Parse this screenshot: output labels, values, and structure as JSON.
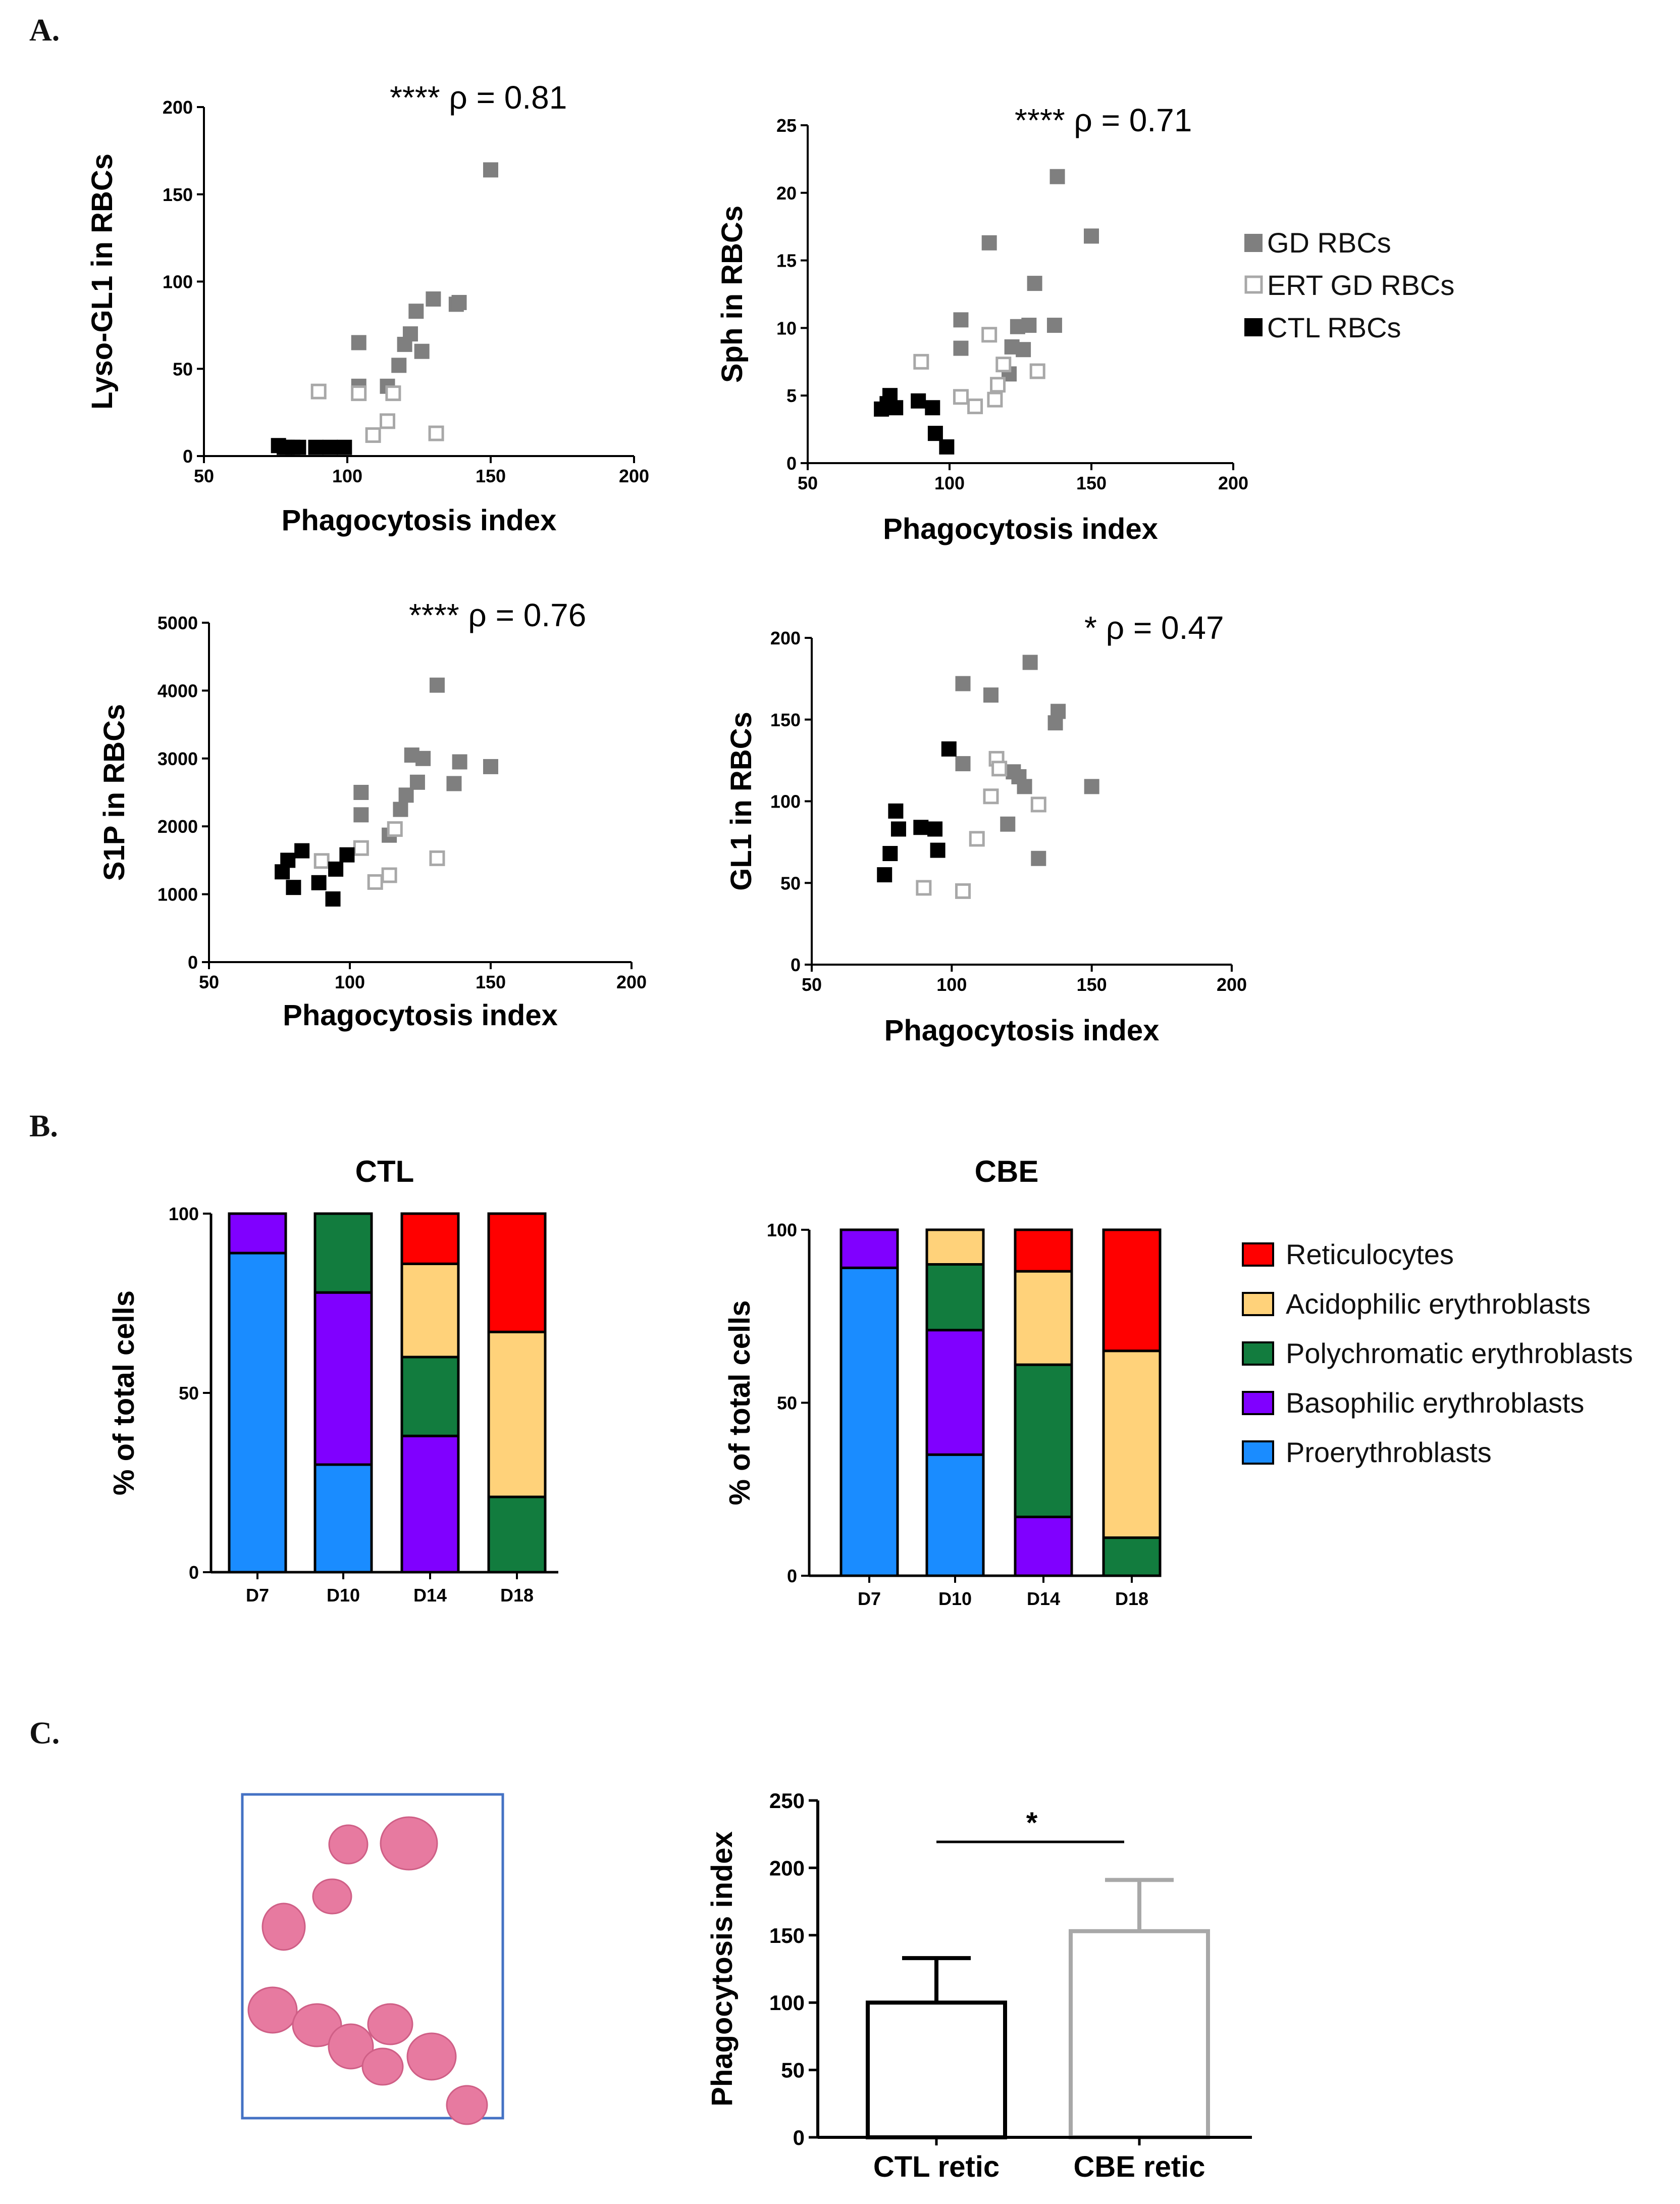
{
  "figure": {
    "panel_labels": [
      "A.",
      "B.",
      "C."
    ],
    "scatter_legend": [
      {
        "label": "GD RBCs",
        "style": "filled",
        "color": "#7f7f7f"
      },
      {
        "label": "ERT GD RBCs",
        "style": "open",
        "color": "#a8a8a8"
      },
      {
        "label": "CTL RBCs",
        "style": "filled",
        "color": "#000000"
      }
    ],
    "stack_legend": [
      {
        "label": "Reticulocytes",
        "color": "#ff0000"
      },
      {
        "label": "Acidophilic erythroblasts",
        "color": "#ffd27a"
      },
      {
        "label": "Polychromatic erythroblasts",
        "color": "#127c3e"
      },
      {
        "label": "Basophilic erythroblasts",
        "color": "#8000ff"
      },
      {
        "label": "Proerythroblasts",
        "color": "#1a8cff"
      }
    ],
    "micrograph": {
      "description_icon": "microscopy-image",
      "frame_color": "#4472c4"
    }
  },
  "chart_data": [
    {
      "id": "lyso",
      "type": "scatter",
      "title": "",
      "annotation": "**** ρ = 0.81",
      "xlabel": "Phagocytosis index",
      "ylabel": "Lyso-GL1 in RBCs",
      "xlim": [
        50,
        200
      ],
      "ylim": [
        0,
        200
      ],
      "xticks": [
        50,
        100,
        150,
        200
      ],
      "yticks": [
        0,
        50,
        100,
        150,
        200
      ],
      "series": [
        {
          "name": "GD RBCs",
          "points": [
            [
              150,
              164
            ],
            [
              104,
              65
            ],
            [
              104,
              40
            ],
            [
              114,
              40
            ],
            [
              118,
              52
            ],
            [
              120,
              64
            ],
            [
              122,
              70
            ],
            [
              124,
              83
            ],
            [
              126,
              60
            ],
            [
              130,
              90
            ],
            [
              138,
              87
            ],
            [
              139,
              88
            ]
          ]
        },
        {
          "name": "ERT GD RBCs",
          "points": [
            [
              90,
              37
            ],
            [
              104,
              36
            ],
            [
              109,
              12
            ],
            [
              114,
              20
            ],
            [
              116,
              36
            ],
            [
              131,
              13
            ]
          ]
        },
        {
          "name": "CTL RBCs",
          "points": [
            [
              76,
              6
            ],
            [
              78,
              5
            ],
            [
              79,
              5
            ],
            [
              81,
              5
            ],
            [
              83,
              5
            ],
            [
              89,
              5
            ],
            [
              94,
              5
            ],
            [
              99,
              5
            ]
          ]
        }
      ]
    },
    {
      "id": "sph",
      "type": "scatter",
      "annotation": "**** ρ = 0.71",
      "xlabel": "Phagocytosis index",
      "ylabel": "Sph in RBCs",
      "xlim": [
        50,
        200
      ],
      "ylim": [
        0,
        25
      ],
      "xticks": [
        50,
        100,
        150,
        200
      ],
      "yticks": [
        0,
        5,
        10,
        15,
        20,
        25
      ],
      "series": [
        {
          "name": "GD RBCs",
          "points": [
            [
              138,
              21.2
            ],
            [
              150,
              16.8
            ],
            [
              114,
              16.3
            ],
            [
              130,
              13.3
            ],
            [
              104,
              10.6
            ],
            [
              104,
              8.5
            ],
            [
              121,
              6.6
            ],
            [
              122,
              8.6
            ],
            [
              124,
              10.1
            ],
            [
              126,
              8.4
            ],
            [
              128,
              10.2
            ],
            [
              137,
              10.2
            ]
          ]
        },
        {
          "name": "ERT GD RBCs",
          "points": [
            [
              90,
              7.5
            ],
            [
              104,
              4.9
            ],
            [
              109,
              4.2
            ],
            [
              114,
              9.5
            ],
            [
              116,
              4.7
            ],
            [
              117,
              5.8
            ],
            [
              119,
              7.3
            ],
            [
              131,
              6.8
            ]
          ]
        },
        {
          "name": "CTL RBCs",
          "points": [
            [
              76,
              4.0
            ],
            [
              78,
              4.4
            ],
            [
              79,
              5.0
            ],
            [
              81,
              4.1
            ],
            [
              89,
              4.6
            ],
            [
              94,
              4.1
            ],
            [
              95,
              2.2
            ],
            [
              99,
              1.2
            ]
          ]
        }
      ]
    },
    {
      "id": "s1p",
      "type": "scatter",
      "annotation": "**** ρ = 0.76",
      "xlabel": "Phagocytosis index",
      "ylabel": "S1P in RBCs",
      "xlim": [
        50,
        200
      ],
      "ylim": [
        0,
        5000
      ],
      "xticks": [
        50,
        100,
        150,
        200
      ],
      "yticks": [
        0,
        1000,
        2000,
        3000,
        4000,
        5000
      ],
      "series": [
        {
          "name": "GD RBCs",
          "points": [
            [
              131,
              4080
            ],
            [
              104,
              2500
            ],
            [
              104,
              2170
            ],
            [
              114,
              1870
            ],
            [
              118,
              2250
            ],
            [
              120,
              2460
            ],
            [
              122,
              3050
            ],
            [
              124,
              2650
            ],
            [
              126,
              3000
            ],
            [
              137,
              2630
            ],
            [
              139,
              2950
            ],
            [
              150,
              2880
            ]
          ]
        },
        {
          "name": "ERT GD RBCs",
          "points": [
            [
              90,
              1490
            ],
            [
              104,
              1680
            ],
            [
              109,
              1180
            ],
            [
              114,
              1280
            ],
            [
              116,
              1960
            ],
            [
              131,
              1530
            ]
          ]
        },
        {
          "name": "CTL RBCs",
          "points": [
            [
              76,
              1330
            ],
            [
              78,
              1500
            ],
            [
              80,
              1100
            ],
            [
              83,
              1640
            ],
            [
              89,
              1170
            ],
            [
              94,
              930
            ],
            [
              95,
              1370
            ],
            [
              99,
              1580
            ]
          ]
        }
      ]
    },
    {
      "id": "gl1",
      "type": "scatter",
      "annotation": "* ρ = 0.47",
      "xlabel": "Phagocytosis index",
      "ylabel": "GL1 in RBCs",
      "xlim": [
        50,
        200
      ],
      "ylim": [
        0,
        200
      ],
      "xticks": [
        50,
        100,
        150,
        200
      ],
      "yticks": [
        0,
        50,
        100,
        150,
        200
      ],
      "series": [
        {
          "name": "GD RBCs",
          "points": [
            [
              104,
              172
            ],
            [
              104,
              123
            ],
            [
              114,
              165
            ],
            [
              120,
              86
            ],
            [
              122,
              118
            ],
            [
              124,
              115
            ],
            [
              126,
              109
            ],
            [
              128,
              185
            ],
            [
              131,
              65
            ],
            [
              137,
              148
            ],
            [
              138,
              155
            ],
            [
              150,
              109
            ]
          ]
        },
        {
          "name": "ERT GD RBCs",
          "points": [
            [
              90,
              47
            ],
            [
              104,
              45
            ],
            [
              109,
              77
            ],
            [
              114,
              103
            ],
            [
              116,
              126
            ],
            [
              117,
              120
            ],
            [
              131,
              98
            ]
          ]
        },
        {
          "name": "CTL RBCs",
          "points": [
            [
              76,
              55
            ],
            [
              78,
              68
            ],
            [
              80,
              94
            ],
            [
              81,
              83
            ],
            [
              89,
              84
            ],
            [
              94,
              83
            ],
            [
              95,
              70
            ],
            [
              99,
              132
            ]
          ]
        }
      ]
    },
    {
      "id": "ctl-stack",
      "type": "bar",
      "stacked": true,
      "title": "CTL",
      "ylabel": "% of total cells",
      "categories": [
        "D7",
        "D10",
        "D14",
        "D18"
      ],
      "ylim": [
        0,
        100
      ],
      "yticks": [
        0,
        50,
        100
      ],
      "series": [
        {
          "name": "Proerythroblasts",
          "values": [
            89,
            30,
            0,
            0
          ]
        },
        {
          "name": "Basophilic erythroblasts",
          "values": [
            11,
            48,
            38,
            0
          ]
        },
        {
          "name": "Polychromatic erythroblasts",
          "values": [
            0,
            22,
            22,
            21
          ]
        },
        {
          "name": "Acidophilic erythroblasts",
          "values": [
            0,
            0,
            26,
            46
          ]
        },
        {
          "name": "Reticulocytes",
          "values": [
            0,
            0,
            14,
            33
          ]
        }
      ]
    },
    {
      "id": "cbe-stack",
      "type": "bar",
      "stacked": true,
      "title": "CBE",
      "ylabel": "% of total cells",
      "categories": [
        "D7",
        "D10",
        "D14",
        "D18"
      ],
      "ylim": [
        0,
        100
      ],
      "yticks": [
        0,
        50,
        100
      ],
      "series": [
        {
          "name": "Proerythroblasts",
          "values": [
            89,
            35,
            0,
            0
          ]
        },
        {
          "name": "Basophilic erythroblasts",
          "values": [
            11,
            36,
            17,
            0
          ]
        },
        {
          "name": "Polychromatic erythroblasts",
          "values": [
            0,
            19,
            44,
            11
          ]
        },
        {
          "name": "Acidophilic erythroblasts",
          "values": [
            0,
            10,
            27,
            54
          ]
        },
        {
          "name": "Reticulocytes",
          "values": [
            0,
            0,
            12,
            35
          ]
        }
      ]
    },
    {
      "id": "retic-bars",
      "type": "bar",
      "ylabel": "Phagocytosis index",
      "categories": [
        "CTL retic",
        "CBE retic"
      ],
      "values": [
        100,
        153
      ],
      "errors": [
        33,
        38
      ],
      "colors": [
        "#000000",
        "#a8a8a8"
      ],
      "ylim": [
        0,
        250
      ],
      "yticks": [
        0,
        50,
        100,
        150,
        200,
        250
      ],
      "significance": "*"
    }
  ]
}
